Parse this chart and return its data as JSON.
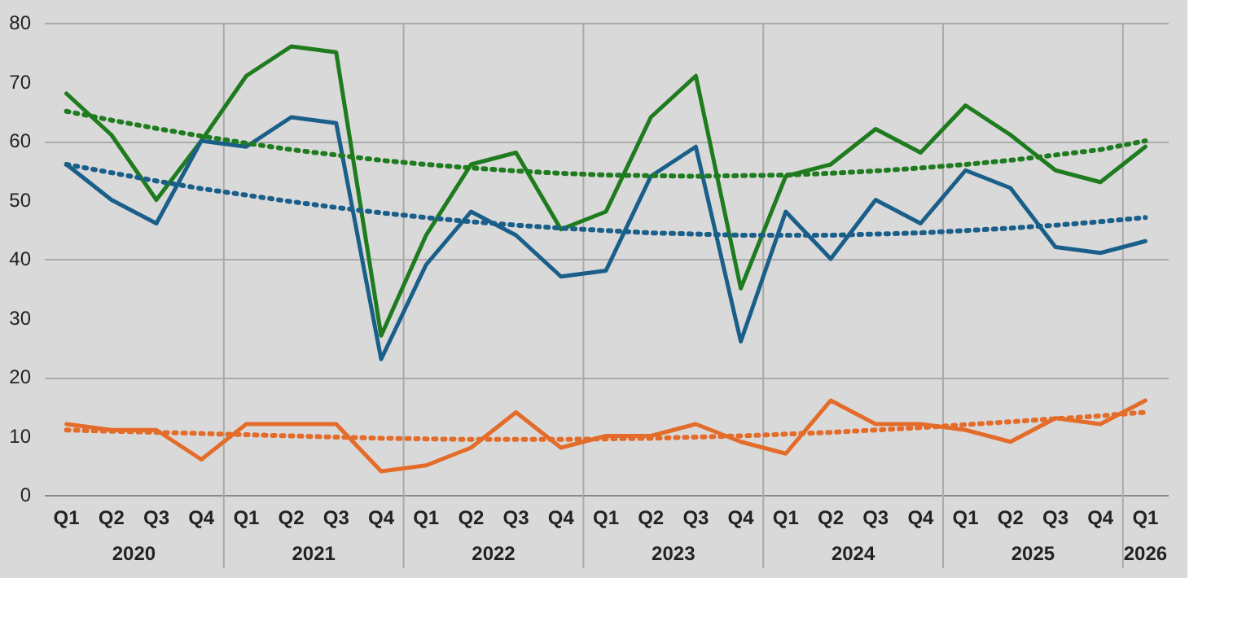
{
  "chart_data": {
    "type": "line",
    "categories": [
      "Q1",
      "Q2",
      "Q3",
      "Q4",
      "Q1",
      "Q2",
      "Q3",
      "Q4",
      "Q1",
      "Q2",
      "Q3",
      "Q4",
      "Q1",
      "Q2",
      "Q3",
      "Q4",
      "Q1",
      "Q2",
      "Q3",
      "Q4",
      "Q1",
      "Q2",
      "Q3",
      "Q4",
      "Q1"
    ],
    "annotations": [
      "2020",
      "2021",
      "2022",
      "2023",
      "2024",
      "2025",
      "2026"
    ],
    "ylim": [
      0,
      80
    ],
    "yticks": [
      0,
      10,
      20,
      30,
      40,
      50,
      60,
      70,
      80
    ],
    "grid": true,
    "legend": false,
    "marker": "none",
    "series": [
      {
        "color": "#1e7b1e",
        "values": [
          68,
          61,
          50,
          60,
          71,
          76,
          75,
          27,
          44,
          56,
          58,
          45,
          48,
          64,
          71,
          35,
          54,
          56,
          62,
          58,
          66,
          61,
          55,
          53,
          59
        ]
      },
      {
        "color": "#1a5f8a",
        "values": [
          56,
          50,
          46,
          60,
          59,
          64,
          63,
          23,
          39,
          48,
          44,
          37,
          38,
          54,
          59,
          26,
          48,
          40,
          50,
          46,
          55,
          52,
          42,
          41,
          43
        ]
      },
      {
        "color": "#e46c2a",
        "values": [
          12,
          11,
          11,
          6,
          12,
          12,
          12,
          4,
          5,
          8,
          14,
          8,
          10,
          10,
          12,
          9,
          7,
          16,
          12,
          12,
          11,
          9,
          13,
          12,
          16
        ]
      },
      {
        "color": "#1e7b1e",
        "line_style": "dotted",
        "values": [
          65,
          63.5,
          62.1,
          60.8,
          59.6,
          58.5,
          57.6,
          56.7,
          56.0,
          55.4,
          54.9,
          54.5,
          54.2,
          54.1,
          54,
          54.1,
          54.2,
          54.5,
          54.9,
          55.4,
          56.0,
          56.7,
          57.6,
          58.5,
          60.0
        ]
      },
      {
        "color": "#1a5f8a",
        "line_style": "dotted",
        "values": [
          56,
          54.6,
          53.2,
          51.9,
          50.8,
          49.7,
          48.7,
          47.8,
          47.0,
          46.3,
          45.7,
          45.2,
          44.8,
          44.4,
          44.2,
          44.0,
          44,
          44.0,
          44.2,
          44.4,
          44.8,
          45.2,
          45.7,
          46.3,
          47.0
        ]
      },
      {
        "color": "#e46c2a",
        "line_style": "dotted",
        "values": [
          11,
          10.8,
          10.6,
          10.4,
          10.2,
          10,
          9.8,
          9.6,
          9.5,
          9.4,
          9.4,
          9.4,
          9.5,
          9.6,
          9.8,
          10,
          10.3,
          10.6,
          11,
          11.4,
          11.9,
          12.4,
          12.9,
          13.4,
          14
        ]
      }
    ]
  }
}
